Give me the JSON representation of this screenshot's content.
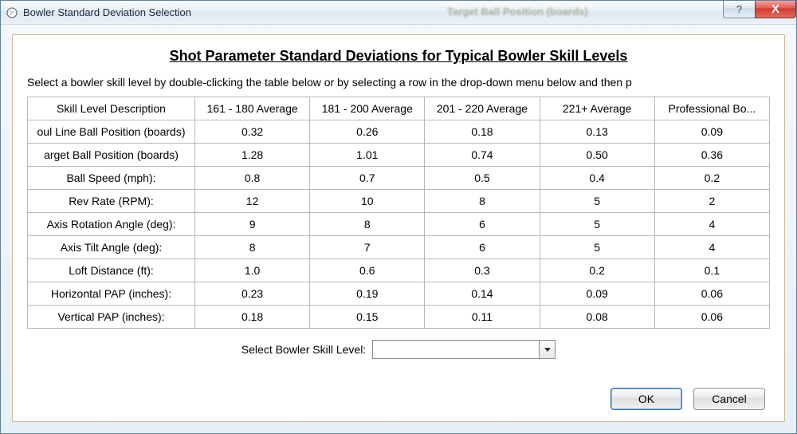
{
  "window": {
    "title": "Bowler Standard Deviation Selection",
    "ghost_title": "Target Ball Position (boards)",
    "help_glyph": "?",
    "close_glyph": "X"
  },
  "heading": "Shot Parameter Standard Deviations for Typical Bowler Skill Levels",
  "instructions": "Select a bowler skill level by double-clicking the table below or by selecting a row in the drop-down menu below and then p",
  "table": {
    "columns": [
      "Skill Level Description",
      "161 - 180 Average",
      "181 - 200 Average",
      "201 - 220 Average",
      "221+ Average",
      "Professional Bo..."
    ],
    "rows": [
      {
        "label": "oul Line Ball Position (boards)",
        "values": [
          "0.32",
          "0.26",
          "0.18",
          "0.13",
          "0.09"
        ]
      },
      {
        "label": "arget Ball Position (boards)",
        "values": [
          "1.28",
          "1.01",
          "0.74",
          "0.50",
          "0.36"
        ]
      },
      {
        "label": "Ball Speed (mph):",
        "values": [
          "0.8",
          "0.7",
          "0.5",
          "0.4",
          "0.2"
        ]
      },
      {
        "label": "Rev Rate (RPM):",
        "values": [
          "12",
          "10",
          "8",
          "5",
          "2"
        ]
      },
      {
        "label": "Axis Rotation Angle (deg):",
        "values": [
          "9",
          "8",
          "6",
          "5",
          "4"
        ]
      },
      {
        "label": "Axis Tilt Angle (deg):",
        "values": [
          "8",
          "7",
          "6",
          "5",
          "4"
        ]
      },
      {
        "label": "Loft Distance (ft):",
        "values": [
          "1.0",
          "0.6",
          "0.3",
          "0.2",
          "0.1"
        ]
      },
      {
        "label": "Horizontal PAP (inches):",
        "values": [
          "0.23",
          "0.19",
          "0.14",
          "0.09",
          "0.06"
        ]
      },
      {
        "label": "Vertical PAP (inches):",
        "values": [
          "0.18",
          "0.15",
          "0.11",
          "0.08",
          "0.06"
        ]
      }
    ],
    "border_color": "#b8b8b8",
    "header_bg": "#ffffff",
    "cell_bg": "#ffffff",
    "font_size": 14
  },
  "selector": {
    "label": "Select Bowler Skill Level:",
    "selected": ""
  },
  "buttons": {
    "ok": "OK",
    "cancel": "Cancel"
  },
  "colors": {
    "window_border": "#5a7fa0",
    "content_border": "#c8b98f",
    "close_bg": "#cf3a30",
    "ok_border": "#2f6fab"
  }
}
